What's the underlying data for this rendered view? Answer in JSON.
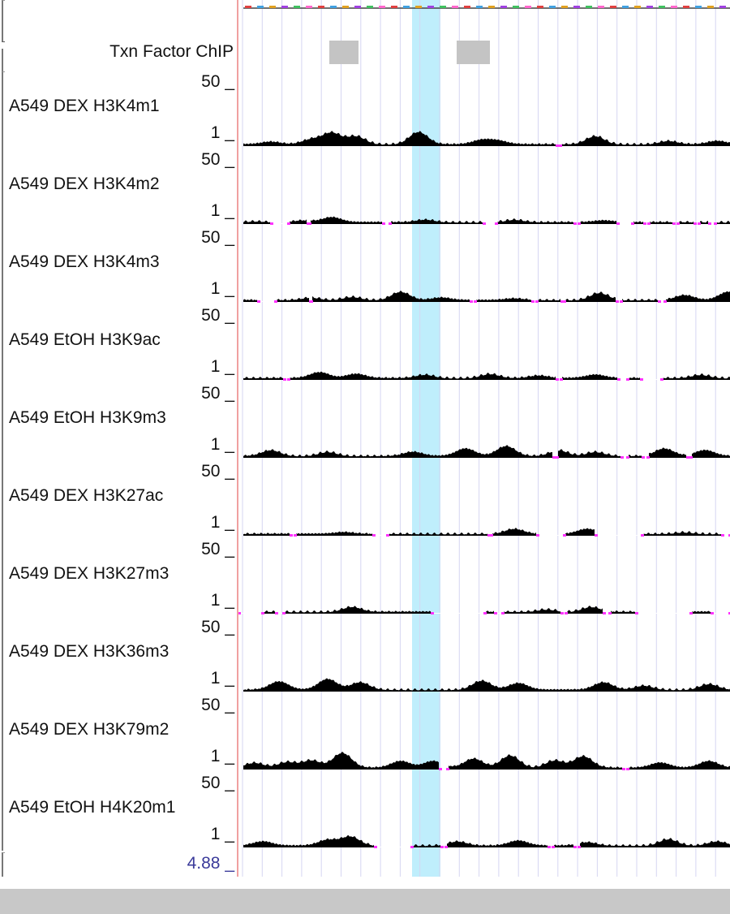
{
  "tf_track": {
    "label": "Txn Factor ChIP"
  },
  "tracks": [
    {
      "label": "A549 DEX H3K4m1",
      "max": "50 _",
      "min": "1 _"
    },
    {
      "label": "A549 DEX H3K4m2",
      "max": "50 _",
      "min": "1 _"
    },
    {
      "label": "A549 DEX H3K4m3",
      "max": "50 _",
      "min": "1 _"
    },
    {
      "label": "A549 EtOH H3K9ac",
      "max": "50 _",
      "min": "1 _"
    },
    {
      "label": "A549 EtOH H3K9m3",
      "max": "50 _",
      "min": "1 _"
    },
    {
      "label": "A549 DEX H3K27ac",
      "max": "50 _",
      "min": "1 _"
    },
    {
      "label": "A549 DEX H3K27m3",
      "max": "50 _",
      "min": "1 _"
    },
    {
      "label": "A549 DEX H3K36m3",
      "max": "50 _",
      "min": "1 _"
    },
    {
      "label": "A549 DEX H3K79m2",
      "max": "50 _",
      "min": "1 _"
    },
    {
      "label": "A549 EtOH H4K20m1",
      "max": "50 _",
      "min": "1 _"
    }
  ],
  "next_track_scale": "4.88 _",
  "colors": {
    "highlight": "#bfeefc",
    "grid": "#d6d6f2",
    "signal": "#000000",
    "gap_marker": "#ff33ff",
    "tf_block": "#c4c4c4",
    "divider": "#f0a0a0",
    "scrollbar": "#c8c8c8"
  }
}
